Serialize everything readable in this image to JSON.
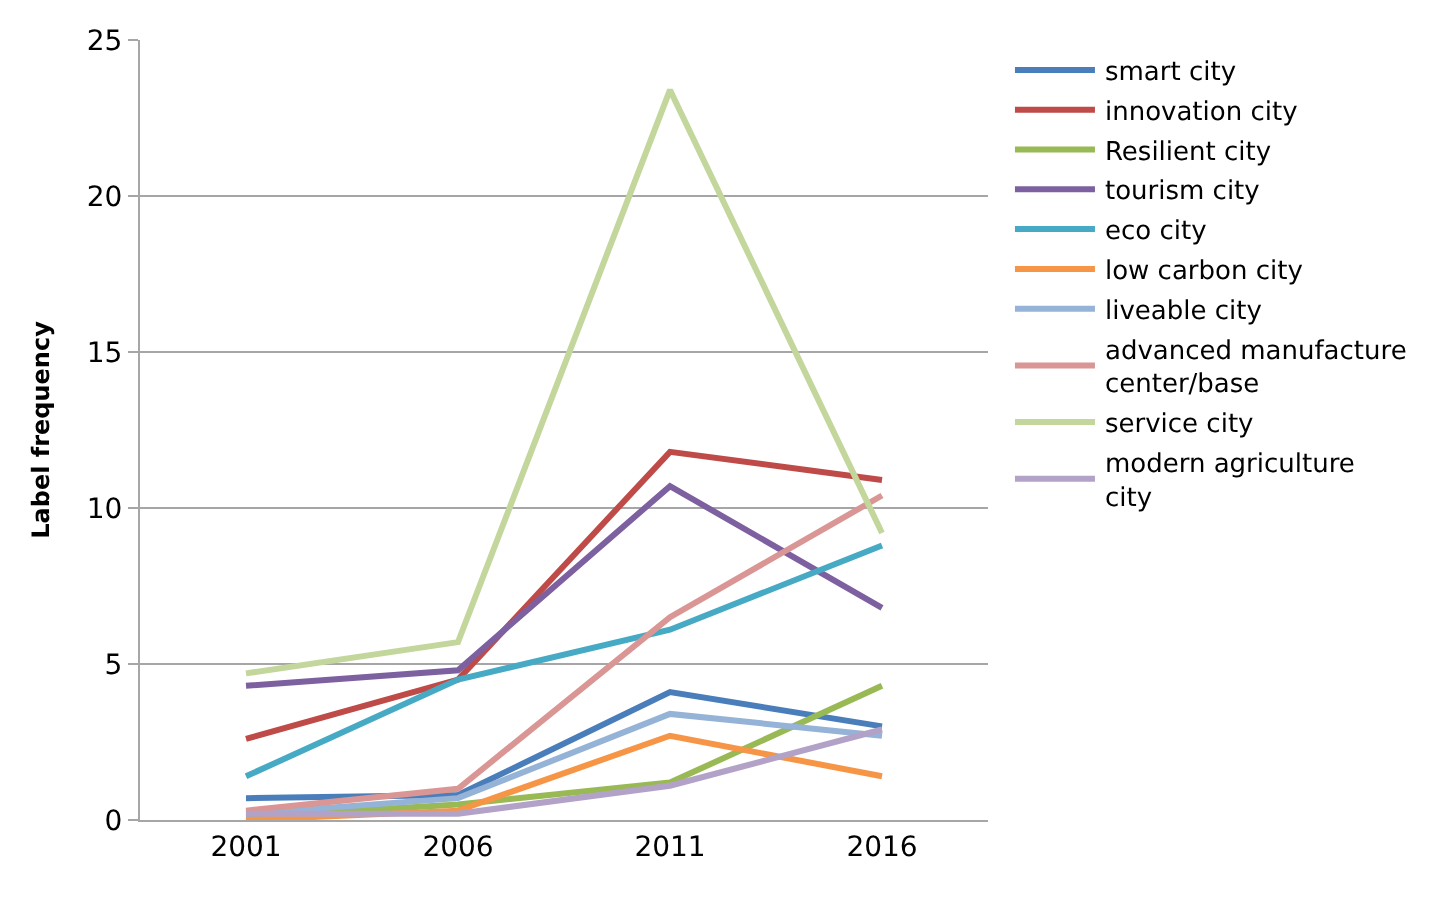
{
  "chart_data": {
    "type": "line",
    "ylabel": "Label frequency",
    "categories": [
      "2001",
      "2006",
      "2011",
      "2016"
    ],
    "ylim": [
      0,
      25
    ],
    "yticks": [
      0,
      5,
      10,
      15,
      20,
      25
    ],
    "grid": "y",
    "legend": "right",
    "marker": "none",
    "series": [
      {
        "name": "smart city",
        "color": "#4a7ebb",
        "values": [
          0.7,
          0.8,
          4.1,
          3.0
        ]
      },
      {
        "name": "innovation city",
        "color": "#be4b48",
        "values": [
          2.6,
          4.5,
          11.8,
          10.9
        ]
      },
      {
        "name": "Resilient city",
        "color": "#98b954",
        "values": [
          0.1,
          0.5,
          1.2,
          4.3
        ]
      },
      {
        "name": "tourism city",
        "color": "#7d60a0",
        "values": [
          4.3,
          4.8,
          10.7,
          6.8
        ]
      },
      {
        "name": "eco city",
        "color": "#46aac5",
        "values": [
          1.4,
          4.5,
          6.1,
          8.8
        ]
      },
      {
        "name": "low carbon city",
        "color": "#f69546",
        "values": [
          0.0,
          0.3,
          2.7,
          1.4
        ]
      },
      {
        "name": "liveable city",
        "color": "#94b3d6",
        "values": [
          0.2,
          0.7,
          3.4,
          2.7
        ]
      },
      {
        "name": "advanced manufacture center/base",
        "color": "#d99694",
        "values": [
          0.3,
          1.0,
          6.5,
          10.4
        ]
      },
      {
        "name": "service city",
        "color": "#c3d69b",
        "values": [
          4.7,
          5.7,
          23.4,
          9.2
        ]
      },
      {
        "name": "modern agriculture city",
        "color": "#b3a2c7",
        "values": [
          0.2,
          0.2,
          1.1,
          2.9
        ]
      }
    ]
  }
}
